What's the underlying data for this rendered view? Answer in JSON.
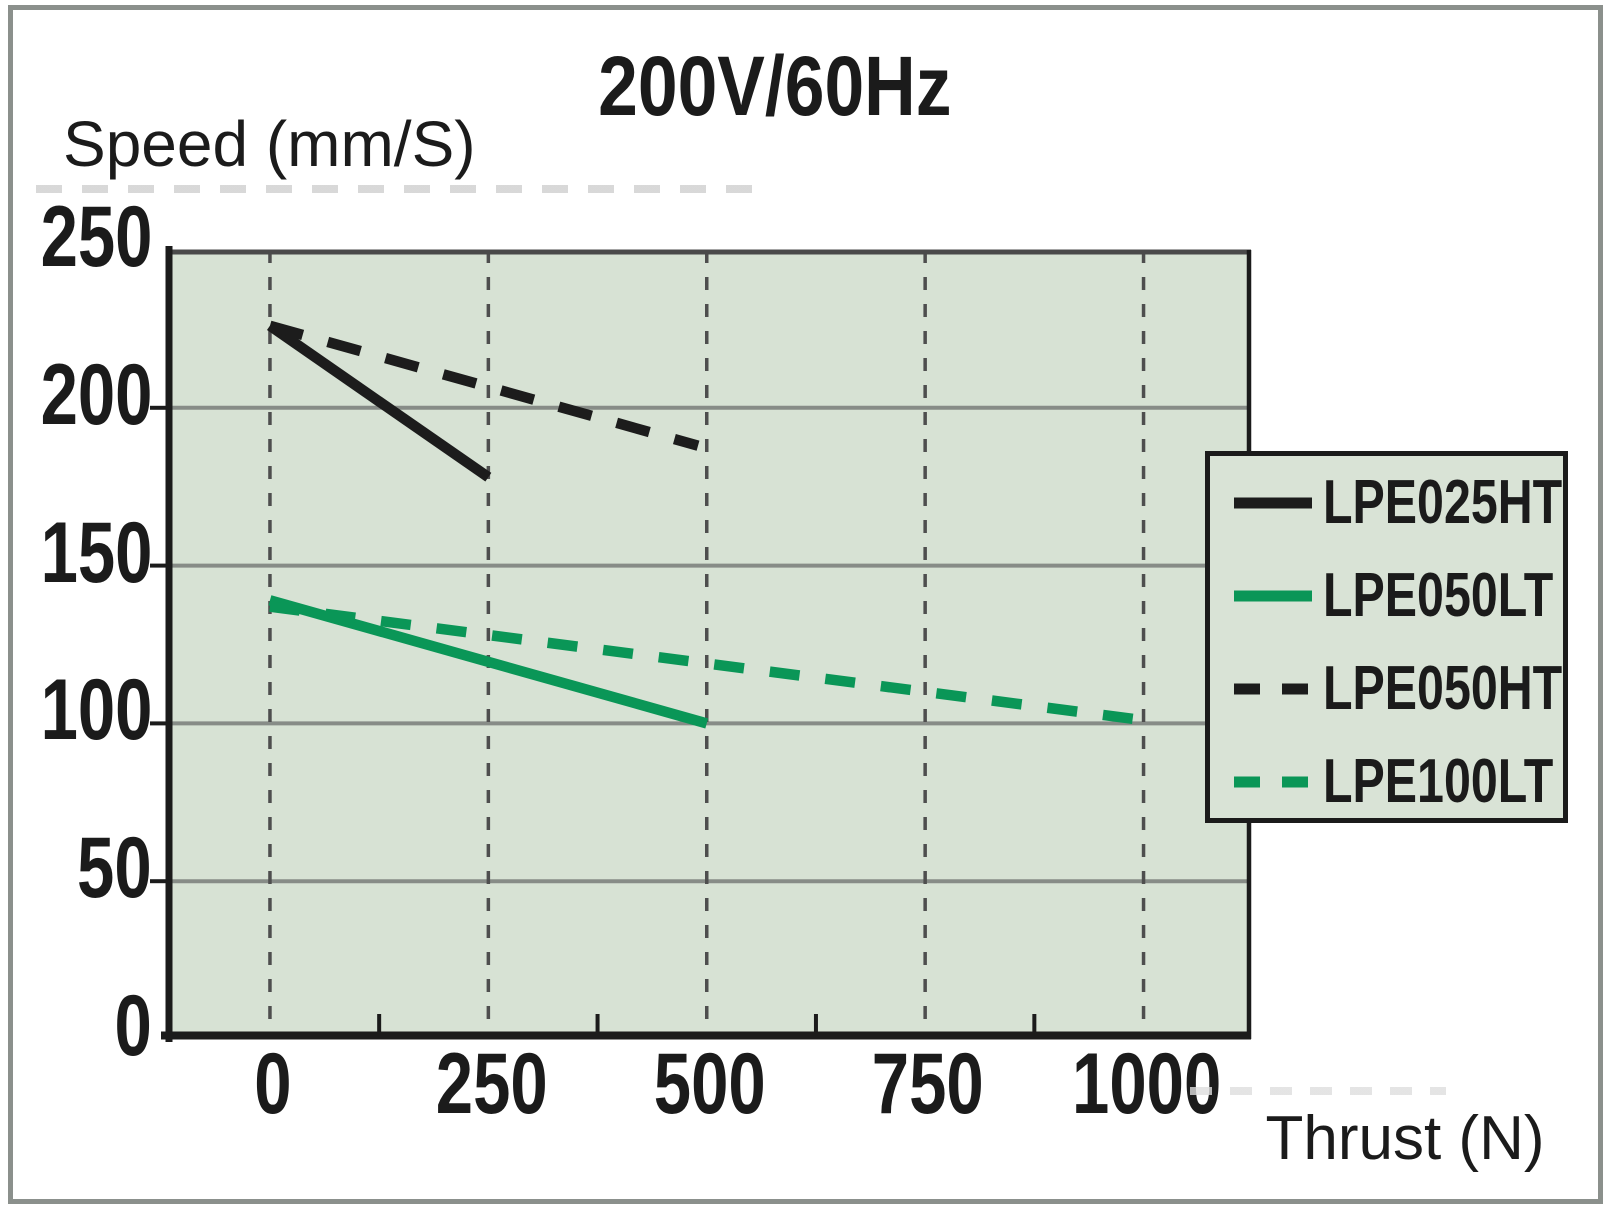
{
  "window": {
    "background": "#ffffff",
    "frame_border_color": "#8b908c"
  },
  "chart_data": {
    "type": "line",
    "title": "200V/60Hz",
    "xlabel": "Thrust (N)",
    "ylabel": "Speed (mm/S)",
    "xlim": [
      -119,
      1123
    ],
    "ylim": [
      0,
      250
    ],
    "plot_bg": "#d7e2d4",
    "axis_color": "#1b1b1b",
    "top_border_color": "#4a4a4a",
    "h_gridline_color": "#878c87",
    "v_gridline_color": "#4e4e4e",
    "grid": "horizontal solid, vertical dashed",
    "legend_position": "right, overlapping plot edge",
    "xticks": {
      "values": [
        0,
        250,
        500,
        750,
        1000
      ],
      "labels": [
        "0",
        "250",
        "500",
        "750",
        "1000"
      ]
    },
    "x_minor_ticks": [
      125,
      375,
      625,
      875
    ],
    "yticks": {
      "values": [
        250,
        200,
        150,
        100,
        50,
        0
      ],
      "labels": [
        "250",
        "200",
        "150",
        "100",
        "50",
        "0"
      ]
    },
    "y_gridlines": [
      50,
      100,
      150,
      200
    ],
    "series": [
      {
        "name": "LPE025HT",
        "color": "#1c1c1c",
        "dash": false,
        "points": [
          [
            0,
            226
          ],
          [
            250,
            178
          ]
        ]
      },
      {
        "name": "LPE050LT",
        "color": "#0a9657",
        "dash": false,
        "points": [
          [
            0,
            139
          ],
          [
            500,
            100
          ]
        ]
      },
      {
        "name": "LPE050HT",
        "color": "#1c1c1c",
        "dash": true,
        "points": [
          [
            0,
            226
          ],
          [
            490,
            188
          ]
        ]
      },
      {
        "name": "LPE100LT",
        "color": "#0a9657",
        "dash": true,
        "points": [
          [
            0,
            137
          ],
          [
            1000,
            101
          ]
        ]
      }
    ]
  }
}
